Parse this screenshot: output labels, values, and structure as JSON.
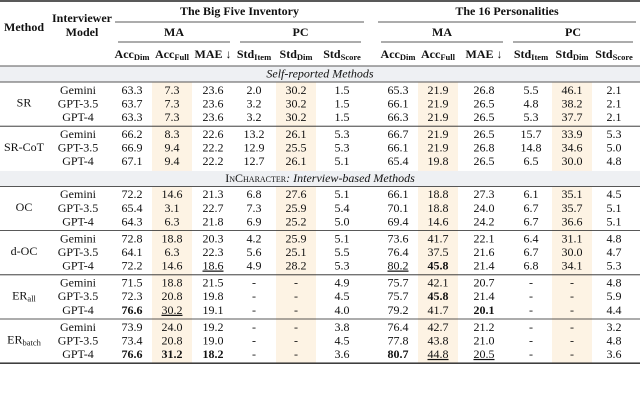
{
  "header": {
    "method": "Method",
    "model": [
      "Interviewer",
      "Model"
    ],
    "groups": [
      {
        "title": "The Big Five Inventory",
        "subgroups": [
          "MA",
          "PC"
        ]
      },
      {
        "title": "The 16 Personalities",
        "subgroups": [
          "MA",
          "PC"
        ]
      }
    ],
    "columns": [
      {
        "main": "Acc",
        "sub": "Dim"
      },
      {
        "main": "Acc",
        "sub": "Full"
      },
      {
        "main": "MAE ↓"
      },
      {
        "main": "Std",
        "sub": "Item"
      },
      {
        "main": "Std",
        "sub": "Dim"
      },
      {
        "main": "Std",
        "sub": "Score"
      }
    ]
  },
  "sections": [
    {
      "label": {
        "text": "Self-reported Methods"
      },
      "methods": [
        {
          "name": {
            "main": "SR"
          },
          "rows": [
            {
              "model": "Gemini",
              "cells": [
                "63.3",
                "7.3",
                "23.6",
                "2.0",
                "30.2",
                "1.5",
                "65.3",
                "21.9",
                "26.8",
                "5.5",
                "46.1",
                "2.1"
              ]
            },
            {
              "model": "GPT-3.5",
              "cells": [
                "63.7",
                "7.3",
                "23.6",
                "3.2",
                "30.2",
                "1.5",
                "66.1",
                "21.9",
                "26.5",
                "4.8",
                "38.2",
                "2.1"
              ]
            },
            {
              "model": "GPT-4",
              "cells": [
                "63.3",
                "7.3",
                "23.6",
                "3.2",
                "30.2",
                "1.5",
                "66.3",
                "21.9",
                "26.5",
                "5.3",
                "37.7",
                "2.1"
              ]
            }
          ]
        },
        {
          "name": {
            "main": "SR-CoT"
          },
          "rows": [
            {
              "model": "Gemini",
              "cells": [
                "66.2",
                "8.3",
                "22.6",
                "13.2",
                "26.1",
                "5.3",
                "66.7",
                "21.9",
                "26.5",
                "15.7",
                "33.9",
                "5.3"
              ]
            },
            {
              "model": "GPT-3.5",
              "cells": [
                "66.9",
                "9.4",
                "22.2",
                "12.9",
                "25.5",
                "5.3",
                "66.1",
                "21.9",
                "26.8",
                "14.8",
                "34.6",
                "5.0"
              ]
            },
            {
              "model": "GPT-4",
              "cells": [
                "67.1",
                "9.4",
                "22.2",
                "12.7",
                "26.1",
                "5.1",
                "65.4",
                "19.8",
                "26.5",
                "6.5",
                "30.0",
                "4.8"
              ]
            }
          ]
        }
      ]
    },
    {
      "label": {
        "name": "InCharacter",
        "text": ": Interview-based Methods"
      },
      "methods": [
        {
          "name": {
            "main": "OC"
          },
          "rows": [
            {
              "model": "Gemini",
              "cells": [
                "72.2",
                "14.6",
                "21.3",
                "6.8",
                "27.6",
                "5.1",
                "66.1",
                "18.8",
                "27.3",
                "6.1",
                "35.1",
                "4.5"
              ]
            },
            {
              "model": "GPT-3.5",
              "cells": [
                "65.4",
                "3.1",
                "22.7",
                "7.3",
                "25.9",
                "5.4",
                "70.1",
                "18.8",
                "24.0",
                "6.7",
                "35.7",
                "5.1"
              ]
            },
            {
              "model": "GPT-4",
              "cells": [
                "64.3",
                "6.3",
                "21.8",
                "6.9",
                "25.2",
                "5.0",
                "69.4",
                "14.6",
                "24.2",
                "6.7",
                "36.6",
                "5.1"
              ]
            }
          ]
        },
        {
          "name": {
            "main": "d-OC"
          },
          "rows": [
            {
              "model": "Gemini",
              "cells": [
                "72.8",
                "18.8",
                "20.3",
                "4.2",
                "25.9",
                "5.1",
                "73.6",
                "41.7",
                "22.1",
                "6.4",
                "31.1",
                "4.8"
              ]
            },
            {
              "model": "GPT-3.5",
              "cells": [
                "64.1",
                "6.3",
                "22.3",
                "5.6",
                "25.1",
                "5.5",
                "76.4",
                "37.5",
                "21.6",
                "6.7",
                "30.0",
                "4.7"
              ]
            },
            {
              "model": "GPT-4",
              "cells": [
                "72.2",
                "14.6",
                {
                  "text": "18.6",
                  "style": "underline"
                },
                "4.9",
                "28.2",
                "5.3",
                {
                  "text": "80.2",
                  "style": "underline"
                },
                {
                  "text": "45.8",
                  "style": "bold"
                },
                "21.4",
                "6.8",
                "34.1",
                "5.3"
              ]
            }
          ]
        },
        {
          "name": {
            "main": "ER",
            "sub": "all"
          },
          "rows": [
            {
              "model": "Gemini",
              "cells": [
                "71.5",
                "18.8",
                "21.5",
                "-",
                "-",
                "4.9",
                "75.7",
                "42.1",
                "20.7",
                "-",
                "-",
                "4.8"
              ]
            },
            {
              "model": "GPT-3.5",
              "cells": [
                "72.3",
                "20.8",
                "19.8",
                "-",
                "-",
                "4.5",
                "75.7",
                {
                  "text": "45.8",
                  "style": "bold"
                },
                "21.4",
                "-",
                "-",
                "5.9"
              ]
            },
            {
              "model": "GPT-4",
              "cells": [
                {
                  "text": "76.6",
                  "style": "bold"
                },
                {
                  "text": "30.2",
                  "style": "underline"
                },
                "19.1",
                "-",
                "-",
                "4.0",
                "79.2",
                "41.7",
                {
                  "text": "20.1",
                  "style": "bold"
                },
                "-",
                "-",
                "4.4"
              ]
            }
          ]
        },
        {
          "name": {
            "main": "ER",
            "sub": "batch"
          },
          "rows": [
            {
              "model": "Gemini",
              "cells": [
                "73.9",
                "24.0",
                "19.2",
                "-",
                "-",
                "3.8",
                "76.4",
                "42.7",
                "21.2",
                "-",
                "-",
                "3.2"
              ]
            },
            {
              "model": "GPT-3.5",
              "cells": [
                "73.4",
                "20.8",
                "19.0",
                "-",
                "-",
                "4.5",
                "77.8",
                "43.8",
                "21.0",
                "-",
                "-",
                "4.8"
              ]
            },
            {
              "model": "GPT-4",
              "cells": [
                {
                  "text": "76.6",
                  "style": "bold"
                },
                {
                  "text": "31.2",
                  "style": "bold"
                },
                {
                  "text": "18.2",
                  "style": "bold"
                },
                "-",
                "-",
                "3.6",
                {
                  "text": "80.7",
                  "style": "bold"
                },
                {
                  "text": "44.8",
                  "style": "underline"
                },
                {
                  "text": "20.5",
                  "style": "underline"
                },
                "-",
                "-",
                "3.6"
              ]
            }
          ]
        }
      ]
    }
  ]
}
